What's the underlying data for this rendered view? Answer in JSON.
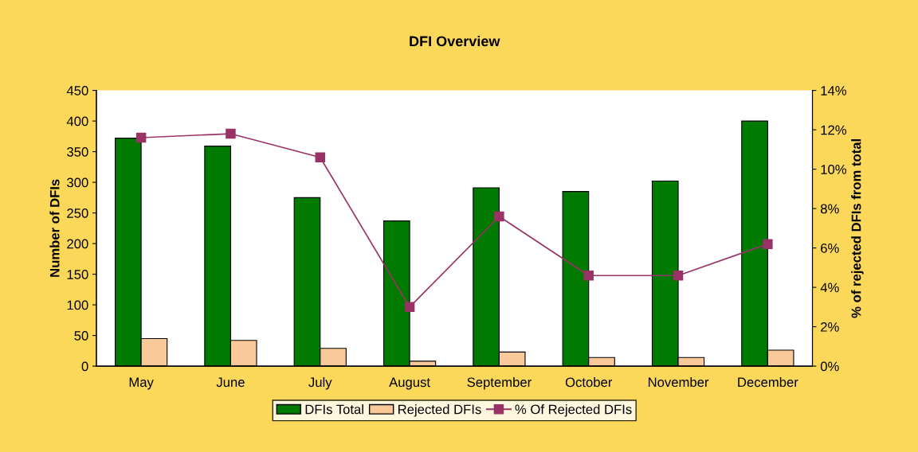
{
  "chart_data": {
    "type": "bar",
    "title": "DFI Overview",
    "ylabel": "Number of DFIs",
    "y2label": "% of rejected DFIs from total",
    "categories": [
      "May",
      "June",
      "July",
      "August",
      "September",
      "October",
      "November",
      "December"
    ],
    "series": [
      {
        "name": "DFIs Total",
        "color": "#007a00",
        "values": [
          372,
          359,
          275,
          237,
          291,
          285,
          302,
          400
        ]
      },
      {
        "name": "Rejected DFIs",
        "color": "#f9c99a",
        "values": [
          45,
          42,
          29,
          8,
          23,
          14,
          14,
          26
        ]
      },
      {
        "name": "% Of Rejected DFIs",
        "type": "line",
        "axis": "y2",
        "color": "#993366",
        "marker": "square",
        "values": [
          11.6,
          11.8,
          10.6,
          3.0,
          7.6,
          4.6,
          4.6,
          6.2
        ]
      }
    ],
    "ylim": [
      0,
      450
    ],
    "yticks": [
      0,
      50,
      100,
      150,
      200,
      250,
      300,
      350,
      400,
      450
    ],
    "y2lim": [
      0,
      14
    ],
    "y2ticks": [
      {
        "value": 0,
        "label": "0%"
      },
      {
        "value": 2,
        "label": "2%"
      },
      {
        "value": 4,
        "label": "4%"
      },
      {
        "value": 6,
        "label": "6%"
      },
      {
        "value": 8,
        "label": "8%"
      },
      {
        "value": 10,
        "label": "10%"
      },
      {
        "value": 12,
        "label": "12%"
      },
      {
        "value": 14,
        "label": "14%"
      }
    ],
    "grid": false,
    "legend": "bottom"
  }
}
